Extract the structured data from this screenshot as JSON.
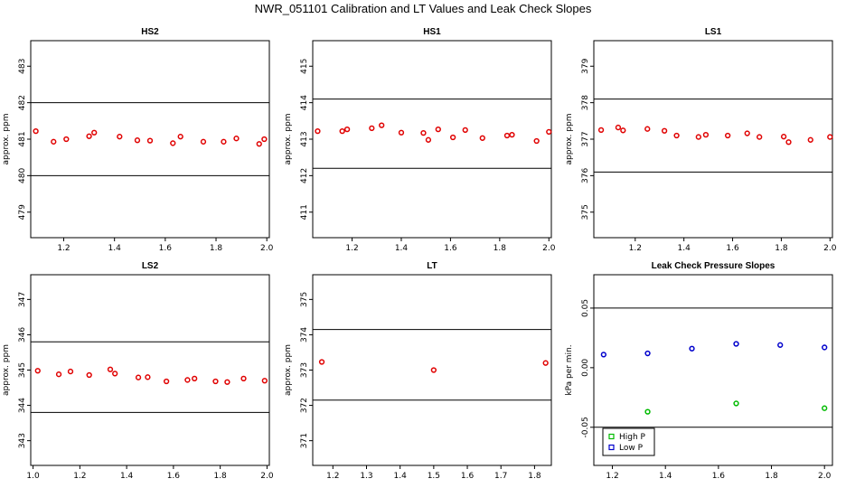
{
  "title": "NWR_051101  Calibration and LT Values and Leak Check Slopes",
  "chart_data": [
    {
      "type": "scatter",
      "title": "HS2",
      "xlabel": "",
      "ylabel": "approx. ppm",
      "xlim": [
        1.07,
        2.01
      ],
      "ylim": [
        478.3,
        483.7
      ],
      "xticks": [
        1.2,
        1.4,
        1.6,
        1.8,
        2.0
      ],
      "xtick_labels": [
        "1.2",
        "1.4",
        "1.6",
        "1.8",
        "2.0"
      ],
      "yticks": [
        479,
        480,
        481,
        482,
        483
      ],
      "ytick_labels": [
        "479",
        "480",
        "481",
        "482",
        "483"
      ],
      "hlines": [
        480.0,
        482.0
      ],
      "series": [
        {
          "color": "#e00000",
          "x": [
            1.09,
            1.16,
            1.21,
            1.3,
            1.32,
            1.42,
            1.49,
            1.54,
            1.63,
            1.66,
            1.75,
            1.83,
            1.88,
            1.97,
            1.99
          ],
          "y": [
            481.22,
            480.93,
            481.0,
            481.08,
            481.18,
            481.07,
            480.97,
            480.96,
            480.89,
            481.07,
            480.93,
            480.93,
            481.02,
            480.87,
            481.0
          ]
        }
      ]
    },
    {
      "type": "scatter",
      "title": "HS1",
      "xlabel": "",
      "ylabel": "approx. ppm",
      "xlim": [
        1.04,
        2.01
      ],
      "ylim": [
        410.3,
        415.7
      ],
      "xticks": [
        1.2,
        1.4,
        1.6,
        1.8,
        2.0
      ],
      "xtick_labels": [
        "1.2",
        "1.4",
        "1.6",
        "1.8",
        "2.0"
      ],
      "yticks": [
        411,
        412,
        413,
        414,
        415
      ],
      "ytick_labels": [
        "411",
        "412",
        "413",
        "414",
        "415"
      ],
      "hlines": [
        412.2,
        414.1
      ],
      "series": [
        {
          "color": "#e00000",
          "x": [
            1.06,
            1.16,
            1.18,
            1.28,
            1.32,
            1.4,
            1.49,
            1.51,
            1.55,
            1.61,
            1.66,
            1.73,
            1.83,
            1.85,
            1.95,
            2.0
          ],
          "y": [
            413.22,
            413.22,
            413.27,
            413.3,
            413.38,
            413.18,
            413.17,
            412.98,
            413.27,
            413.05,
            413.25,
            413.03,
            413.1,
            413.12,
            412.95,
            413.2
          ]
        }
      ]
    },
    {
      "type": "scatter",
      "title": "LS1",
      "xlabel": "",
      "ylabel": "approx. ppm",
      "xlim": [
        1.03,
        2.01
      ],
      "ylim": [
        374.3,
        379.7
      ],
      "xticks": [
        1.2,
        1.4,
        1.6,
        1.8,
        2.0
      ],
      "xtick_labels": [
        "1.2",
        "1.4",
        "1.6",
        "1.8",
        "2.0"
      ],
      "yticks": [
        375,
        376,
        377,
        378,
        379
      ],
      "ytick_labels": [
        "375",
        "376",
        "377",
        "378",
        "379"
      ],
      "hlines": [
        376.1,
        378.1
      ],
      "series": [
        {
          "color": "#e00000",
          "x": [
            1.06,
            1.13,
            1.15,
            1.25,
            1.32,
            1.37,
            1.46,
            1.49,
            1.58,
            1.66,
            1.71,
            1.81,
            1.83,
            1.92,
            2.0
          ],
          "y": [
            377.25,
            377.32,
            377.24,
            377.28,
            377.23,
            377.1,
            377.06,
            377.12,
            377.1,
            377.16,
            377.06,
            377.07,
            376.92,
            376.98,
            377.06
          ]
        }
      ]
    },
    {
      "type": "scatter",
      "title": "LS2",
      "xlabel": "",
      "ylabel": "approx. ppm",
      "xlim": [
        0.99,
        2.01
      ],
      "ylim": [
        342.3,
        347.7
      ],
      "xticks": [
        1.0,
        1.2,
        1.4,
        1.6,
        1.8,
        2.0
      ],
      "xtick_labels": [
        "1.0",
        "1.2",
        "1.4",
        "1.6",
        "1.8",
        "2.0"
      ],
      "yticks": [
        343,
        344,
        345,
        346,
        347
      ],
      "ytick_labels": [
        "343",
        "344",
        "345",
        "346",
        "347"
      ],
      "hlines": [
        343.8,
        345.8
      ],
      "series": [
        {
          "color": "#e00000",
          "x": [
            1.02,
            1.11,
            1.16,
            1.24,
            1.33,
            1.35,
            1.45,
            1.49,
            1.57,
            1.66,
            1.69,
            1.78,
            1.83,
            1.9,
            1.99
          ],
          "y": [
            344.98,
            344.88,
            344.96,
            344.86,
            345.02,
            344.9,
            344.79,
            344.8,
            344.68,
            344.72,
            344.76,
            344.68,
            344.66,
            344.76,
            344.7
          ]
        }
      ]
    },
    {
      "type": "scatter",
      "title": "LT",
      "xlabel": "",
      "ylabel": "approx. ppm",
      "xlim": [
        1.14,
        1.85
      ],
      "ylim": [
        370.3,
        375.7
      ],
      "xticks": [
        1.2,
        1.3,
        1.4,
        1.5,
        1.6,
        1.7,
        1.8
      ],
      "xtick_labels": [
        "1.2",
        "1.3",
        "1.4",
        "1.5",
        "1.6",
        "1.7",
        "1.8"
      ],
      "yticks": [
        371,
        372,
        373,
        374,
        375
      ],
      "ytick_labels": [
        "371",
        "372",
        "373",
        "374",
        "375"
      ],
      "hlines": [
        372.15,
        374.15
      ],
      "series": [
        {
          "color": "#e00000",
          "x": [
            1.167,
            1.5,
            1.833
          ],
          "y": [
            373.23,
            373.0,
            373.2
          ]
        }
      ]
    },
    {
      "type": "scatter",
      "title": "Leak Check Pressure Slopes",
      "xlabel": "",
      "ylabel": "kPa per min.",
      "xlim": [
        1.13,
        2.03
      ],
      "ylim": [
        -0.082,
        0.078
      ],
      "xticks": [
        1.2,
        1.4,
        1.6,
        1.8,
        2.0
      ],
      "xtick_labels": [
        "1.2",
        "1.4",
        "1.6",
        "1.8",
        "2.0"
      ],
      "yticks": [
        -0.05,
        0.0,
        0.05
      ],
      "ytick_labels": [
        "-0.05",
        "0.00",
        "0.05"
      ],
      "hlines": [
        -0.05,
        0.05
      ],
      "legend": {
        "position": "bottom-left",
        "entries": [
          "High P",
          "Low P"
        ]
      },
      "series": [
        {
          "name": "High P",
          "color": "#00bb00",
          "x": [
            1.333,
            1.667,
            2.0
          ],
          "y": [
            -0.037,
            -0.03,
            -0.034
          ]
        },
        {
          "name": "Low P",
          "color": "#0000cc",
          "x": [
            1.167,
            1.333,
            1.5,
            1.667,
            1.833,
            2.0
          ],
          "y": [
            0.011,
            0.012,
            0.016,
            0.02,
            0.019,
            0.017
          ]
        }
      ]
    }
  ]
}
